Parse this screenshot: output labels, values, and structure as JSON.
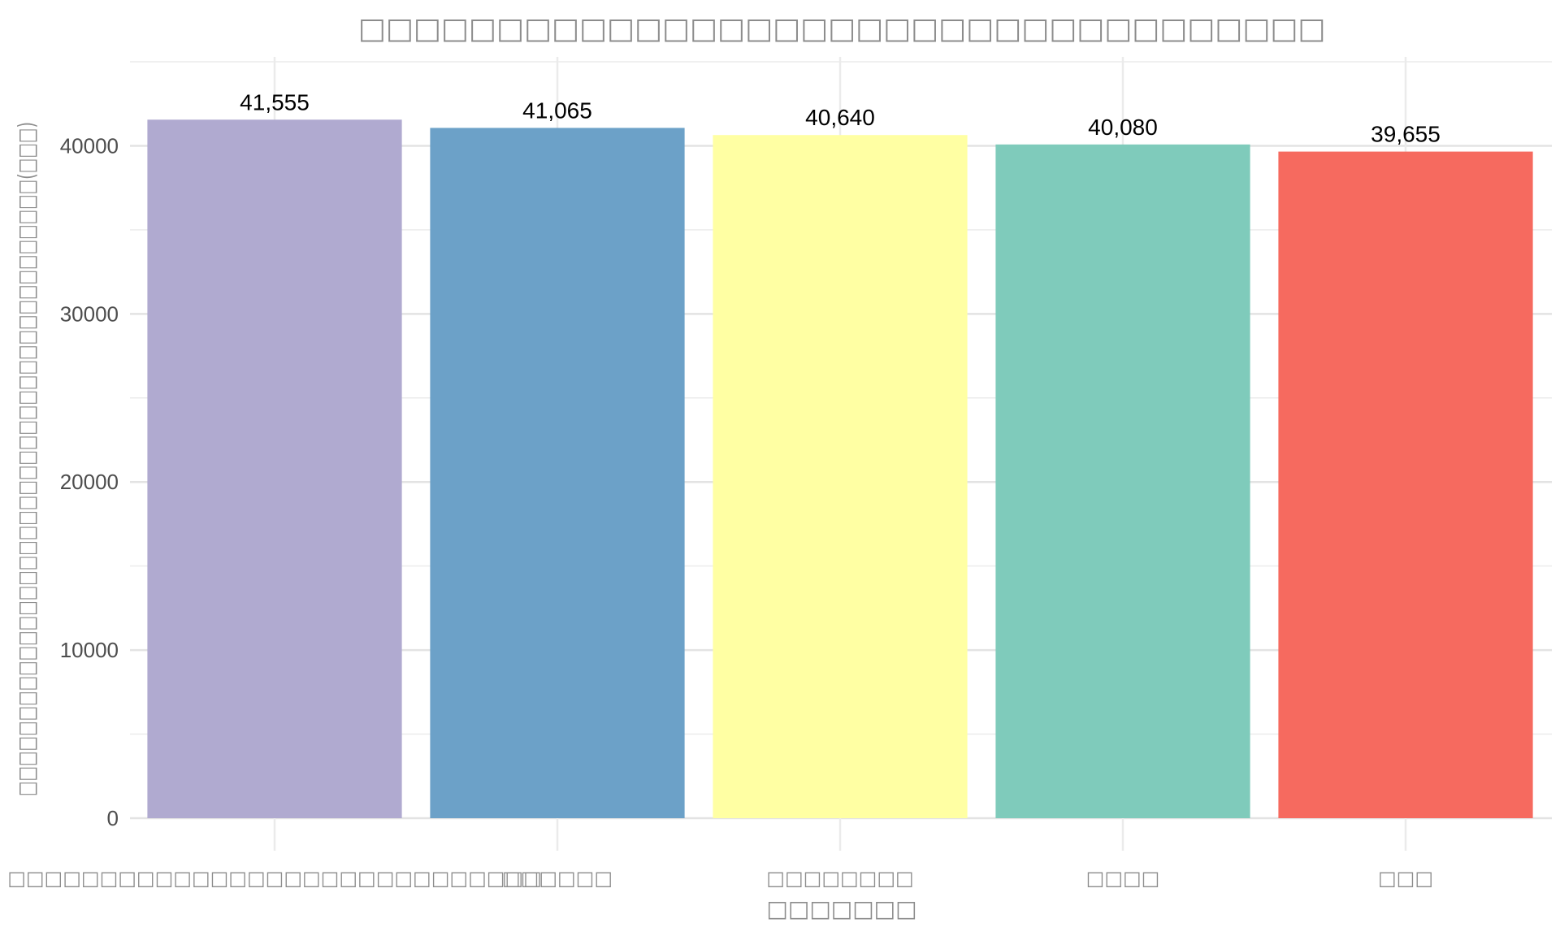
{
  "chart_data": {
    "type": "bar",
    "title": "□□□□□□□□□□□□□□□□□□□□□□□□□□□□□□□□□□□",
    "xlabel": "□□□□□□□",
    "ylabel": "□□□□□□□□□□□□□□□□□□□□□□□□□□□□□□□□□□□□□□□□□(□□□)",
    "categories": [
      "□□□□□□□□□□□□□□□□□□□□□□□□□□□□□",
      "□□□□□□",
      "□□□□□□□□",
      "□□□□",
      "□□□"
    ],
    "values": [
      41555,
      41065,
      40640,
      40080,
      39655
    ],
    "value_labels": [
      "41,555",
      "41,065",
      "40,640",
      "40,080",
      "39,655"
    ],
    "colors": [
      "#b0aad0",
      "#6ca1c8",
      "#ffffa3",
      "#7fcbbb",
      "#f66a5f"
    ],
    "ylim": [
      0,
      45000
    ],
    "yticks": [
      0,
      10000,
      20000,
      30000,
      40000
    ],
    "ytick_labels": [
      "0",
      "10000",
      "20000",
      "30000",
      "40000"
    ],
    "grid": true,
    "legend": "none"
  }
}
